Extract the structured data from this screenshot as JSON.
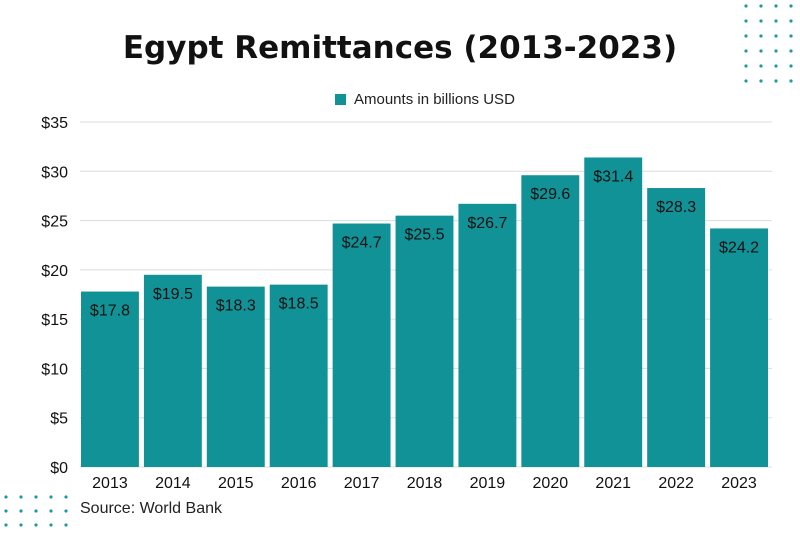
{
  "chart_data": {
    "type": "bar",
    "title": "Egypt Remittances (2013-2023)",
    "legend": {
      "label": "Amounts in billions USD",
      "placement": "top-center"
    },
    "categories": [
      "2013",
      "2014",
      "2015",
      "2016",
      "2017",
      "2018",
      "2019",
      "2020",
      "2021",
      "2022",
      "2023"
    ],
    "values": [
      17.8,
      19.5,
      18.3,
      18.5,
      24.7,
      25.5,
      26.7,
      29.6,
      31.4,
      28.3,
      24.2
    ],
    "data_labels": [
      "$17.8",
      "$19.5",
      "$18.3",
      "$18.5",
      "$24.7",
      "$25.5",
      "$26.7",
      "$29.6",
      "$31.4",
      "$28.3",
      "$24.2"
    ],
    "y_ticks": [
      0,
      5,
      10,
      15,
      20,
      25,
      30,
      35
    ],
    "y_tick_labels": [
      "$0",
      "$5",
      "$10",
      "$15",
      "$20",
      "$25",
      "$30",
      "$35"
    ],
    "ylim": [
      0,
      35
    ],
    "xlabel": "",
    "ylabel": "",
    "grid": true,
    "source": "Source: World Bank"
  },
  "colors": {
    "bar": "#119297",
    "text": "#111111",
    "grid": "#dcdcdc",
    "dots": "#1f9a9e"
  },
  "decorations": {
    "top_right": "dots-grid",
    "bottom_left": "dots-grid"
  }
}
